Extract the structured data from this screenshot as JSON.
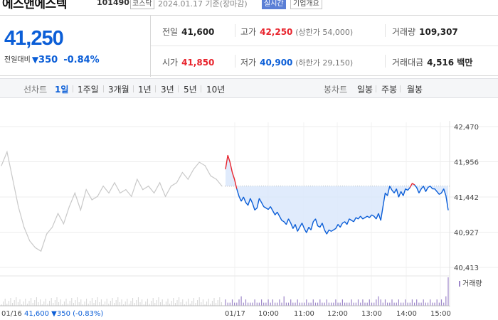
{
  "header": {
    "name": "에스앤에스텍",
    "code": "101490",
    "market": "코스닥",
    "timestamp": "2024.01.17 기준(장마감)",
    "disclosure_button": "실시간",
    "company_button": "기업개요"
  },
  "summary": {
    "price": "41,250",
    "change_label": "전일대비",
    "change_arrow": "▼",
    "change_amount": "350",
    "change_percent": "-0.84%",
    "prev_close": {
      "label": "전일",
      "value": "41,600"
    },
    "high": {
      "label": "고가",
      "value": "42,250",
      "limit_label": "(상한가 54,000)"
    },
    "volume": {
      "label": "거래량",
      "value": "109,307"
    },
    "open": {
      "label": "시가",
      "value": "41,850"
    },
    "low": {
      "label": "저가",
      "value": "40,900",
      "limit_label": "(하한가 29,150)"
    },
    "trade_value": {
      "label": "거래대금",
      "value": "4,516 백만"
    }
  },
  "toolbar": {
    "line_chart_label": "선차트",
    "periods": [
      "1일",
      "1주일",
      "3개월",
      "1년",
      "3년",
      "5년",
      "10년"
    ],
    "selected_period": "1일",
    "candle_label": "봉차트",
    "candle_periods": [
      "일봉",
      "주봉",
      "월봉"
    ]
  },
  "colors": {
    "up": "#e8242d",
    "down": "#0b5ed7",
    "prev_day_line": "#c9c9c9",
    "volume_bar": "#9c86c9"
  },
  "chart_data": {
    "type": "line",
    "y_ticks": [
      "42,470",
      "41,956",
      "41,442",
      "40,927",
      "40,413"
    ],
    "ylim": [
      40413,
      42470
    ],
    "x_ticks": [
      "01/17",
      "10:00",
      "11:00",
      "12:00",
      "13:00",
      "14:00",
      "15:00"
    ],
    "reference_price": 41600,
    "volume_label": "거래량",
    "prev_day_label": "01/16",
    "prev_day_close": "41,600",
    "prev_day_arrow": "▼",
    "prev_day_change": "350",
    "prev_day_percent": "(-0.83%)",
    "series": [
      {
        "values": [
          41850,
          42050,
          41950,
          41800,
          41700,
          41560,
          41450,
          41380,
          41440,
          41360,
          41320,
          41420,
          41350,
          41250,
          41280,
          41420,
          41360,
          41300,
          41280,
          41260,
          41300,
          41240,
          41180,
          41220,
          41160,
          41100,
          41080,
          41040,
          41120,
          41060,
          40980,
          41040,
          40940,
          41000,
          41060,
          40980,
          40920,
          41000,
          40960,
          41080,
          41120,
          41020,
          41000,
          41060,
          40960,
          40900,
          40960,
          40940,
          40960,
          40980,
          41040,
          41000,
          41060,
          41080,
          41040,
          41120,
          41100,
          41080,
          41140,
          41120,
          41160,
          41120,
          41140,
          41160,
          41140,
          41180,
          41160,
          41120,
          41200,
          41100,
          41300,
          41500,
          41460,
          41600,
          41540,
          41500,
          41560,
          41440,
          41520,
          41460,
          41560,
          41540,
          41580,
          41640,
          41620,
          41580,
          41500,
          41560,
          41600,
          41520,
          41580,
          41600,
          41560,
          41560,
          41520,
          41480,
          41500,
          41560,
          41460,
          41250
        ]
      },
      {
        "values": [
          41900,
          42100,
          41700,
          41300,
          41000,
          40800,
          40700,
          40650,
          40900,
          41000,
          41200,
          41050,
          41300,
          41500,
          41250,
          41550,
          41400,
          41450,
          41600,
          41500,
          41650,
          41500,
          41550,
          41450,
          41700,
          41550,
          41600,
          41500,
          41650,
          41450,
          41600,
          41650,
          41800,
          41700,
          41850,
          41950,
          41900,
          41750,
          41700,
          41600
        ]
      },
      {
        "values": [
          2,
          1,
          1,
          2,
          1,
          1,
          2,
          3,
          1,
          2,
          1,
          1,
          1,
          2,
          1,
          1,
          2,
          1,
          1,
          2,
          1,
          2,
          1,
          1,
          2,
          1,
          3,
          1,
          1,
          2,
          1,
          1,
          2,
          1,
          1,
          1,
          2,
          1,
          1,
          2,
          1,
          1,
          2,
          1,
          1,
          2,
          1,
          1,
          1,
          2,
          1,
          1,
          2,
          1,
          1,
          1,
          2,
          1,
          1,
          2,
          1,
          2,
          1,
          1,
          2,
          1,
          1,
          2,
          3,
          2,
          1,
          2,
          1,
          1,
          2,
          1,
          1,
          2,
          1,
          1,
          2,
          1,
          1,
          2,
          1,
          2,
          1,
          1,
          2,
          1,
          1,
          2,
          1,
          1,
          2,
          1,
          2,
          1,
          3,
          9
        ]
      }
    ]
  }
}
